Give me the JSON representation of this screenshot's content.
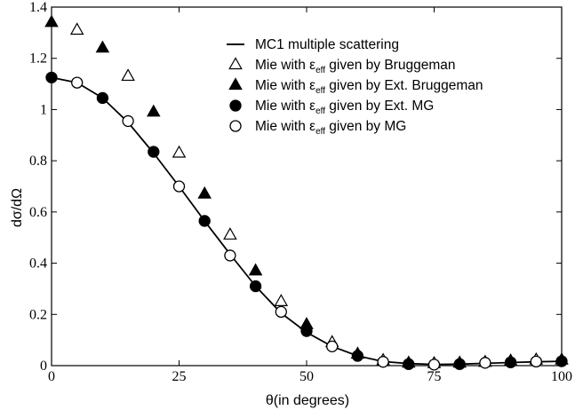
{
  "chart_data": {
    "type": "scatter",
    "title": "",
    "xlabel": "θ(in degrees)",
    "ylabel": "dσ/dΩ",
    "xlim": [
      0,
      100
    ],
    "ylim": [
      0,
      1.4
    ],
    "xticks": [
      "0",
      "25",
      "50",
      "75",
      "100"
    ],
    "yticks": [
      "0",
      "0.2",
      "0.4",
      "0.6",
      "0.8",
      "1",
      "1.2",
      "1.4"
    ],
    "grid": false,
    "legend_position": "top-right",
    "series": [
      {
        "name": "MC1 multiple scattering",
        "name_parts": {
          "pre": "MC1 multiple scattering",
          "sub": "",
          "post": ""
        },
        "marker": "line",
        "x": [
          0,
          5,
          10,
          15,
          20,
          25,
          30,
          35,
          40,
          45,
          50,
          55,
          60,
          65,
          70,
          75,
          80,
          85,
          90,
          95,
          100
        ],
        "y": [
          1.125,
          1.105,
          1.045,
          0.95,
          0.83,
          0.7,
          0.565,
          0.435,
          0.31,
          0.205,
          0.13,
          0.075,
          0.038,
          0.016,
          0.008,
          0.005,
          0.006,
          0.009,
          0.012,
          0.015,
          0.017
        ]
      },
      {
        "name": "Mie with εeff given by Bruggeman",
        "name_parts": {
          "pre": "Mie with ε",
          "sub": "eff",
          "post": " given by Bruggeman"
        },
        "marker": "open-triangle",
        "x": [
          5,
          15,
          25,
          35,
          45,
          55,
          65,
          75,
          85,
          95
        ],
        "y": [
          1.31,
          1.13,
          0.83,
          0.51,
          0.25,
          0.09,
          0.02,
          0.008,
          0.013,
          0.022
        ]
      },
      {
        "name": "Mie with εeff given by Ext. Bruggeman",
        "name_parts": {
          "pre": "Mie with ε",
          "sub": "eff",
          "post": " given by Ext. Bruggeman"
        },
        "marker": "filled-triangle",
        "x": [
          0,
          10,
          20,
          30,
          40,
          50,
          60,
          70,
          80,
          90,
          100
        ],
        "y": [
          1.34,
          1.24,
          0.99,
          0.67,
          0.37,
          0.16,
          0.045,
          0.01,
          0.01,
          0.018,
          0.022
        ]
      },
      {
        "name": "Mie with εeff given by Ext. MG",
        "name_parts": {
          "pre": "Mie with ε",
          "sub": "eff",
          "post": " given by Ext. MG"
        },
        "marker": "filled-circle",
        "x": [
          0,
          10,
          20,
          30,
          40,
          50,
          60,
          70,
          80,
          90,
          100
        ],
        "y": [
          1.125,
          1.045,
          0.835,
          0.565,
          0.31,
          0.135,
          0.038,
          0.006,
          0.006,
          0.013,
          0.017
        ]
      },
      {
        "name": "Mie with εeff given by MG",
        "name_parts": {
          "pre": "Mie with ε",
          "sub": "eff",
          "post": " given by MG"
        },
        "marker": "open-circle",
        "x": [
          5,
          15,
          25,
          35,
          45,
          55,
          65,
          75,
          85,
          95
        ],
        "y": [
          1.105,
          0.955,
          0.7,
          0.43,
          0.21,
          0.075,
          0.015,
          0.004,
          0.011,
          0.016
        ]
      }
    ]
  }
}
